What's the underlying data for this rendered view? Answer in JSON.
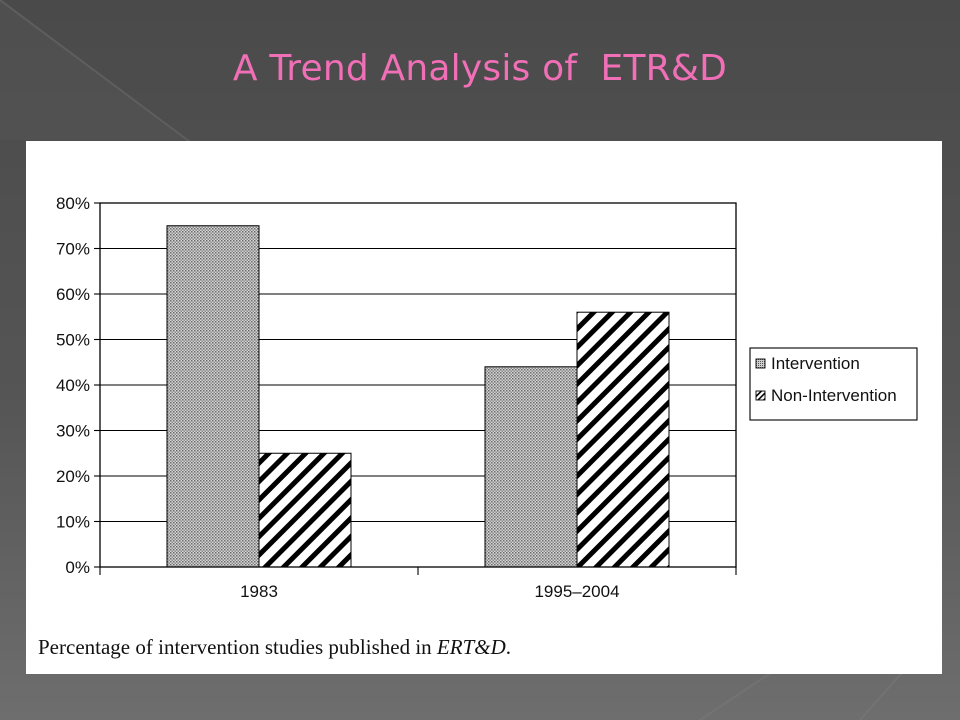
{
  "slide": {
    "title": "A Trend Analysis of  ETR&D"
  },
  "colors": {
    "title": "#f06fb6",
    "background": "#505050",
    "figure_background": "#ffffff"
  },
  "chart_data": {
    "type": "bar",
    "title": "",
    "xlabel": "",
    "ylabel": "",
    "categories": [
      "1983",
      "1995–2004"
    ],
    "series": [
      {
        "name": "Intervention",
        "values": [
          75,
          44
        ],
        "pattern": "dotted-grey"
      },
      {
        "name": "Non-Intervention",
        "values": [
          25,
          56
        ],
        "pattern": "diagonal-hatch"
      }
    ],
    "ylim": [
      0,
      80
    ],
    "yticks": [
      0,
      10,
      20,
      30,
      40,
      50,
      60,
      70,
      80
    ],
    "ytick_labels": [
      "0%",
      "10%",
      "20%",
      "30%",
      "40%",
      "50%",
      "60%",
      "70%",
      "80%"
    ],
    "grid": true,
    "legend_position": "right",
    "caption_prefix": "Percentage of intervention studies published in ",
    "caption_italic": "ERT&D",
    "caption_suffix": "."
  }
}
